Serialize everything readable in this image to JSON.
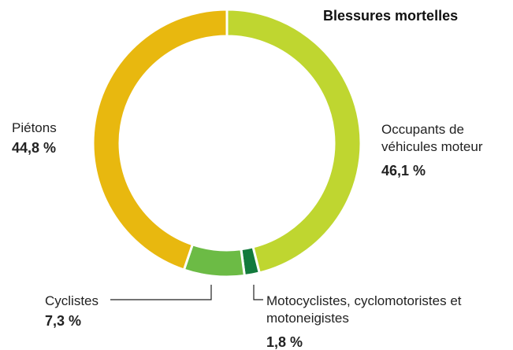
{
  "chart_data": {
    "type": "donut",
    "title": "Blessures mortelles",
    "categories": [
      "Occupants de véhicules moteur",
      "Motocyclistes, cyclomotoristes et motoneigistes",
      "Cyclistes",
      "Piétons"
    ],
    "values": [
      46.1,
      1.8,
      7.3,
      44.8
    ],
    "value_labels": [
      "46,1 %",
      "1,8 %",
      "7,3 %",
      "44,8 %"
    ],
    "colors": [
      "#bfd630",
      "#127a3c",
      "#6cbb45",
      "#e8b80f"
    ]
  }
}
